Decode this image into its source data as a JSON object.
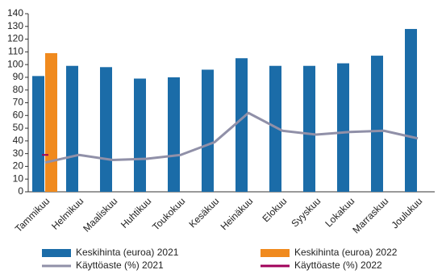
{
  "chart_data": {
    "type": "bar",
    "categories": [
      "Tammikuu",
      "Helmikuu",
      "Maaliskuu",
      "Huhtikuu",
      "Toukokuu",
      "Kesäkuu",
      "Heinäkuu",
      "Elokuu",
      "Syyskuu",
      "Lokakuu",
      "Marraskuu",
      "Joulukuu"
    ],
    "series": [
      {
        "name": "Keskihinta (euroa) 2021",
        "type": "bar",
        "color": "#1b6ca8",
        "values": [
          91,
          99,
          98,
          89,
          90,
          96,
          105,
          99,
          99,
          101,
          107,
          128
        ]
      },
      {
        "name": "Keskihinta (euroa) 2022",
        "type": "bar",
        "color": "#f08a1e",
        "values": [
          109,
          null,
          null,
          null,
          null,
          null,
          null,
          null,
          null,
          null,
          null,
          null
        ]
      },
      {
        "name": "Käyttöaste (%) 2021",
        "type": "line",
        "color": "#9090a8",
        "values": [
          23,
          29,
          25,
          26,
          29,
          39,
          62,
          48,
          45,
          47,
          48,
          42
        ]
      },
      {
        "name": "Käyttöaste (%) 2022",
        "type": "line",
        "color": "#a0005a",
        "values": [
          29,
          null,
          null,
          null,
          null,
          null,
          null,
          null,
          null,
          null,
          null,
          null
        ]
      }
    ],
    "ylim": [
      0,
      140
    ],
    "yticks": [
      0,
      10,
      20,
      30,
      40,
      50,
      60,
      70,
      80,
      90,
      100,
      110,
      120,
      130,
      140
    ]
  }
}
